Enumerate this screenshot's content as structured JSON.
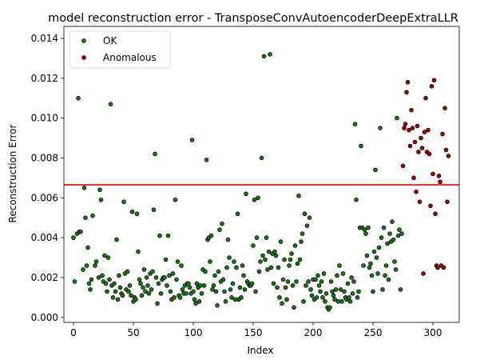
{
  "chart_data": {
    "type": "scatter",
    "title": "model reconstruction error - TransposeConvAutoencoderDeepExtraLLR",
    "xlabel": "Index",
    "ylabel": "Reconstruction Error",
    "xlim": [
      -8,
      322
    ],
    "ylim": [
      -0.00025,
      0.0146
    ],
    "xticks": [
      0,
      50,
      100,
      150,
      200,
      250,
      300
    ],
    "yticks": [
      0.0,
      0.002,
      0.004,
      0.006,
      0.008,
      0.01,
      0.012,
      0.014
    ],
    "ytick_labels": [
      "0.000",
      "0.002",
      "0.004",
      "0.006",
      "0.008",
      "0.010",
      "0.012",
      "0.014"
    ],
    "grid": false,
    "legend_position": "top-left",
    "threshold": {
      "value": 0.00665,
      "color": "#ff0000"
    },
    "series": [
      {
        "name": "OK",
        "color": "#1a7a1a",
        "points": [
          [
            0,
            0.004
          ],
          [
            1,
            0.0018
          ],
          [
            3,
            0.0042
          ],
          [
            4,
            0.011
          ],
          [
            5,
            0.0043
          ],
          [
            6,
            0.0043
          ],
          [
            8,
            0.0024
          ],
          [
            9,
            0.0065
          ],
          [
            10,
            0.005
          ],
          [
            11,
            0.0026
          ],
          [
            12,
            0.0035
          ],
          [
            13,
            0.0017
          ],
          [
            14,
            0.0014
          ],
          [
            15,
            0.0019
          ],
          [
            16,
            0.0051
          ],
          [
            18,
            0.0026
          ],
          [
            19,
            0.0028
          ],
          [
            21,
            0.002
          ],
          [
            22,
            0.0064
          ],
          [
            23,
            0.0059
          ],
          [
            24,
            0.0021
          ],
          [
            25,
            0.0018
          ],
          [
            26,
            0.0031
          ],
          [
            27,
            0.0017
          ],
          [
            28,
            0.0013
          ],
          [
            29,
            0.003
          ],
          [
            30,
            0.0019
          ],
          [
            31,
            0.0107
          ],
          [
            32,
            0.0016
          ],
          [
            33,
            0.001
          ],
          [
            34,
            0.0017
          ],
          [
            35,
            0.0013
          ],
          [
            36,
            0.0039
          ],
          [
            37,
            0.0009
          ],
          [
            38,
            0.0021
          ],
          [
            39,
            0.0015
          ],
          [
            40,
            0.0012
          ],
          [
            41,
            0.0011
          ],
          [
            42,
            0.0058
          ],
          [
            43,
            0.0022
          ],
          [
            44,
            0.0014
          ],
          [
            45,
            0.0023
          ],
          [
            46,
            0.0013
          ],
          [
            47,
            0.0016
          ],
          [
            48,
            0.0011
          ],
          [
            49,
            0.0053
          ],
          [
            50,
            0.0008
          ],
          [
            51,
            0.001
          ],
          [
            52,
            0.0009
          ],
          [
            53,
            0.0052
          ],
          [
            54,
            0.0033
          ],
          [
            55,
            0.0019
          ],
          [
            56,
            0.0017
          ],
          [
            57,
            0.0011
          ],
          [
            58,
            0.0015
          ],
          [
            59,
            0.0024
          ],
          [
            60,
            0.0013
          ],
          [
            61,
            0.002
          ],
          [
            62,
            0.0016
          ],
          [
            63,
            0.0012
          ],
          [
            64,
            0.0022
          ],
          [
            65,
            0.0014
          ],
          [
            66,
            0.0023
          ],
          [
            67,
            0.0054
          ],
          [
            68,
            0.0082
          ],
          [
            69,
            0.002
          ],
          [
            70,
            0.0007
          ],
          [
            71,
            0.0017
          ],
          [
            72,
            0.0041
          ],
          [
            73,
            0.0012
          ],
          [
            74,
            0.0019
          ],
          [
            75,
            0.002
          ],
          [
            76,
            0.002
          ],
          [
            77,
            0.0029
          ],
          [
            78,
            0.0016
          ],
          [
            79,
            0.0041
          ],
          [
            80,
            0.0021
          ],
          [
            81,
            0.0013
          ],
          [
            82,
            0.0009
          ],
          [
            83,
            0.0022
          ],
          [
            84,
            0.001
          ],
          [
            85,
            0.0059
          ],
          [
            86,
            0.0019
          ],
          [
            87,
            0.0028
          ],
          [
            88,
            0.0011
          ],
          [
            89,
            0.001
          ],
          [
            90,
            0.0026
          ],
          [
            91,
            0.0014
          ],
          [
            92,
            0.0012
          ],
          [
            93,
            0.0016
          ],
          [
            94,
            0.0012
          ],
          [
            95,
            0.0017
          ],
          [
            96,
            0.0017
          ],
          [
            97,
            0.0015
          ],
          [
            98,
            0.0012
          ],
          [
            99,
            0.0089
          ],
          [
            100,
            0.0013
          ],
          [
            101,
            0.0009
          ],
          [
            102,
            0.0007
          ],
          [
            103,
            0.0017
          ],
          [
            104,
            0.0015
          ],
          [
            105,
            0.0008
          ],
          [
            106,
            0.0016
          ],
          [
            107,
            0.0012
          ],
          [
            108,
            0.0024
          ],
          [
            109,
            0.0016
          ],
          [
            110,
            0.0023
          ],
          [
            111,
            0.0079
          ],
          [
            112,
            0.0039
          ],
          [
            113,
            0.004
          ],
          [
            114,
            0.0028
          ],
          [
            115,
            0.0041
          ],
          [
            116,
            0.0014
          ],
          [
            117,
            0.0016
          ],
          [
            118,
            0.0021
          ],
          [
            119,
            0.0013
          ],
          [
            120,
            0.0006
          ],
          [
            121,
            0.0023
          ],
          [
            122,
            0.0044
          ],
          [
            123,
            0.0018
          ],
          [
            124,
            0.0047
          ],
          [
            125,
            0.0019
          ],
          [
            126,
            0.0013
          ],
          [
            127,
            0.0008
          ],
          [
            128,
            0.0025
          ],
          [
            129,
            0.0039
          ],
          [
            130,
            0.003
          ],
          [
            131,
            0.0014
          ],
          [
            132,
            0.001
          ],
          [
            133,
            0.0017
          ],
          [
            134,
            0.0028
          ],
          [
            135,
            0.0009
          ],
          [
            136,
            0.0025
          ],
          [
            137,
            0.0052
          ],
          [
            138,
            0.0009
          ],
          [
            139,
            0.0015
          ],
          [
            140,
            0.001
          ],
          [
            141,
            0.0026
          ],
          [
            142,
            0.0021
          ],
          [
            143,
            0.0014
          ],
          [
            144,
            0.0062
          ],
          [
            145,
            0.0018
          ],
          [
            146,
            0.0017
          ],
          [
            147,
            0.0016
          ],
          [
            148,
            0.0016
          ],
          [
            149,
            0.0017
          ],
          [
            150,
            0.0036
          ],
          [
            151,
            0.0059
          ],
          [
            152,
            0.0013
          ],
          [
            153,
            0.004
          ],
          [
            154,
            0.006
          ],
          [
            155,
            0.0023
          ],
          [
            156,
            0.0028
          ],
          [
            157,
            0.008
          ],
          [
            158,
            0.0031
          ],
          [
            159,
            0.0131
          ],
          [
            160,
            0.0029
          ],
          [
            161,
            0.004
          ],
          [
            162,
            0.0024
          ],
          [
            163,
            0.0033
          ],
          [
            164,
            0.0132
          ],
          [
            165,
            0.0025
          ],
          [
            166,
            0.0032
          ],
          [
            167,
            0.0017
          ],
          [
            168,
            0.0033
          ],
          [
            169,
            0.0031
          ],
          [
            170,
            0.0015
          ],
          [
            171,
            0.0025
          ],
          [
            172,
            0.001
          ],
          [
            173,
            0.0038
          ],
          [
            174,
            0.0007
          ],
          [
            175,
            0.0019
          ],
          [
            176,
            0.0029
          ],
          [
            177,
            0.0015
          ],
          [
            178,
            0.0009
          ],
          [
            179,
            0.0018
          ],
          [
            180,
            0.0026
          ],
          [
            181,
            0.0029
          ],
          [
            182,
            0.0032
          ],
          [
            183,
            0.0016
          ],
          [
            184,
            0.0005
          ],
          [
            185,
            0.0036
          ],
          [
            186,
            0.0018
          ],
          [
            187,
            0.0027
          ],
          [
            188,
            0.0061
          ],
          [
            189,
            0.0029
          ],
          [
            190,
            0.0038
          ],
          [
            191,
            0.0042
          ],
          [
            192,
            0.0008
          ],
          [
            193,
            0.0052
          ],
          [
            194,
            0.0016
          ],
          [
            195,
            0.0046
          ],
          [
            196,
            0.0018
          ],
          [
            197,
            0.005
          ],
          [
            198,
            0.0014
          ],
          [
            199,
            0.0011
          ],
          [
            200,
            0.0019
          ],
          [
            201,
            0.0009
          ],
          [
            202,
            0.0019
          ],
          [
            203,
            0.001
          ],
          [
            204,
            0.0021
          ],
          [
            205,
            0.0016
          ],
          [
            206,
            0.0013
          ],
          [
            207,
            0.0018
          ],
          [
            208,
            0.001
          ],
          [
            209,
            0.0022
          ],
          [
            210,
            0.0008
          ],
          [
            211,
            0.0012
          ],
          [
            212,
            0.0005
          ],
          [
            213,
            0.0004
          ],
          [
            214,
            0.0005
          ],
          [
            215,
            0.0018
          ],
          [
            216,
            0.0013
          ],
          [
            217,
            0.0011
          ],
          [
            218,
            0.0009
          ],
          [
            219,
            0.0014
          ],
          [
            220,
            0.0021
          ],
          [
            221,
            0.0008
          ],
          [
            222,
            0.0026
          ],
          [
            223,
            0.0014
          ],
          [
            224,
            0.0008
          ],
          [
            225,
            0.0022
          ],
          [
            226,
            0.0013
          ],
          [
            227,
            0.001
          ],
          [
            228,
            0.0009
          ],
          [
            229,
            0.0017
          ],
          [
            230,
            0.001
          ],
          [
            231,
            0.0008
          ],
          [
            232,
            0.002
          ],
          [
            233,
            0.0012
          ],
          [
            234,
            0.0018
          ],
          [
            235,
            0.0097
          ],
          [
            236,
            0.0059
          ],
          [
            237,
            0.001
          ],
          [
            238,
            0.0013
          ],
          [
            239,
            0.0045
          ],
          [
            240,
            0.0086
          ],
          [
            241,
            0.0045
          ],
          [
            242,
            0.0026
          ],
          [
            243,
            0.0044
          ],
          [
            244,
            0.0042
          ],
          [
            245,
            0.0031
          ],
          [
            246,
            0.0045
          ],
          [
            247,
            0.0025
          ],
          [
            248,
            0.0027
          ],
          [
            249,
            0.0021
          ],
          [
            250,
            0.0013
          ],
          [
            251,
            0.0033
          ],
          [
            252,
            0.0074
          ],
          [
            253,
            0.003
          ],
          [
            254,
            0.0022
          ],
          [
            255,
            0.0035
          ],
          [
            256,
            0.0095
          ],
          [
            257,
            0.004
          ],
          [
            258,
            0.0014
          ],
          [
            259,
            0.0045
          ],
          [
            260,
            0.0021
          ],
          [
            261,
            0.0026
          ],
          [
            262,
            0.0037
          ],
          [
            263,
            0.0019
          ],
          [
            264,
            0.0042
          ],
          [
            265,
            0.0038
          ],
          [
            266,
            0.0048
          ],
          [
            267,
            0.0039
          ],
          [
            268,
            0.0028
          ],
          [
            269,
            0.0024
          ],
          [
            270,
            0.01
          ],
          [
            271,
            0.0041
          ],
          [
            272,
            0.0044
          ],
          [
            273,
            0.0014
          ],
          [
            274,
            0.0042
          ]
        ]
      },
      {
        "name": "Anomalous",
        "color": "#b00000",
        "points": [
          [
            275,
            0.0076
          ],
          [
            276,
            0.0095
          ],
          [
            277,
            0.0097
          ],
          [
            278,
            0.0113
          ],
          [
            279,
            0.0118
          ],
          [
            280,
            0.0094
          ],
          [
            281,
            0.0086
          ],
          [
            282,
            0.0104
          ],
          [
            283,
            0.0095
          ],
          [
            284,
            0.007
          ],
          [
            285,
            0.0088
          ],
          [
            286,
            0.0063
          ],
          [
            287,
            0.0096
          ],
          [
            288,
            0.0083
          ],
          [
            289,
            0.0058
          ],
          [
            290,
            0.009
          ],
          [
            291,
            0.0085
          ],
          [
            292,
            0.0022
          ],
          [
            293,
            0.0093
          ],
          [
            294,
            0.011
          ],
          [
            295,
            0.0083
          ],
          [
            296,
            0.0094
          ],
          [
            297,
            0.0082
          ],
          [
            298,
            0.0056
          ],
          [
            299,
            0.0116
          ],
          [
            300,
            0.0072
          ],
          [
            301,
            0.0119
          ],
          [
            302,
            0.0052
          ],
          [
            303,
            0.0026
          ],
          [
            304,
            0.0025
          ],
          [
            305,
            0.0071
          ],
          [
            306,
            0.0068
          ],
          [
            307,
            0.0026
          ],
          [
            308,
            0.0092
          ],
          [
            309,
            0.0025
          ],
          [
            310,
            0.0105
          ],
          [
            311,
            0.0084
          ],
          [
            312,
            0.0058
          ],
          [
            313,
            0.0081
          ]
        ]
      }
    ]
  }
}
